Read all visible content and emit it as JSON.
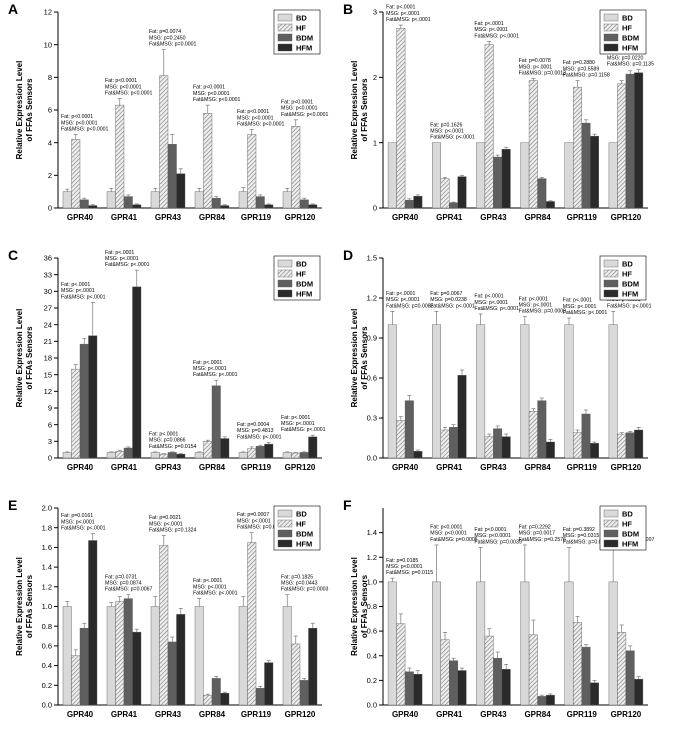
{
  "figure": {
    "patterns": {
      "BD": "#d9d9d9",
      "HF": "hatch",
      "BDM": "#5f5f5f",
      "HFM": "#2a2a2a"
    }
  },
  "chart_data": [
    {
      "panel": "A",
      "type": "bar",
      "categories": [
        "GPR40",
        "GPR41",
        "GPR43",
        "GPR84",
        "GPR119",
        "GPR120"
      ],
      "ylabel": [
        "Relative Expression Level",
        "of FFAs Sensors"
      ],
      "ylim": [
        0,
        12
      ],
      "yticks": [
        0,
        2,
        4,
        6,
        8,
        10,
        12
      ],
      "tick_decimals": 0,
      "legend": [
        "BD",
        "HF",
        "BDM",
        "HFM"
      ],
      "legend_position": "top-right",
      "series": [
        {
          "name": "BD",
          "values": [
            1.0,
            1.0,
            1.0,
            1.0,
            1.0,
            1.0
          ],
          "errors": [
            0.15,
            0.2,
            0.2,
            0.2,
            0.25,
            0.2
          ]
        },
        {
          "name": "HF",
          "values": [
            4.2,
            6.3,
            8.1,
            5.8,
            4.5,
            5.0
          ],
          "errors": [
            0.3,
            0.4,
            1.6,
            0.5,
            0.3,
            0.4
          ]
        },
        {
          "name": "BDM",
          "values": [
            0.5,
            0.7,
            3.9,
            0.6,
            0.7,
            0.5
          ],
          "errors": [
            0.1,
            0.1,
            0.6,
            0.1,
            0.1,
            0.1
          ]
        },
        {
          "name": "HFM",
          "values": [
            0.15,
            0.2,
            2.1,
            0.15,
            0.2,
            0.2
          ],
          "errors": [
            0.05,
            0.05,
            0.3,
            0.05,
            0.05,
            0.05
          ]
        }
      ],
      "annotations": [
        [
          "Fat: p<0.0001",
          "MSG: p<0.0001",
          "Fat&MSG: p<0.0001"
        ],
        [
          "Fat: p<0.0001",
          "MSG: p<0.0001",
          "Fat&MSG: p<0.0001"
        ],
        [
          "Fat: p=0.0074",
          "MSG: p=0.2450",
          "Fat&MSG: p=0.0001"
        ],
        [
          "Fat: p<0.0001",
          "MSG: p<0.0001",
          "Fat&MSG: p<0.0001"
        ],
        [
          "Fat: p<0.0001",
          "MSG: p<0.0001",
          "Fat&MSG: p<0.0001"
        ],
        [
          "Fat: p<0.0001",
          "MSG: p<0.0001",
          "Fat&MSG: p<0.0001"
        ]
      ]
    },
    {
      "panel": "B",
      "type": "bar",
      "categories": [
        "GPR40",
        "GPR41",
        "GPR43",
        "GPR84",
        "GPR119",
        "GPR120"
      ],
      "ylabel": [
        "Relative Expression Level",
        "of FFAs Sensors"
      ],
      "ylim": [
        0,
        3
      ],
      "yticks": [
        0,
        1,
        2,
        3
      ],
      "tick_decimals": 0,
      "legend": [
        "BD",
        "HF",
        "BDM",
        "HFM"
      ],
      "legend_position": "top-right",
      "series": [
        {
          "name": "BD",
          "values": [
            1.0,
            1.0,
            1.0,
            1.0,
            1.0,
            1.0
          ],
          "errors": [
            0.0,
            0.0,
            0.0,
            0.0,
            0.0,
            0.0
          ]
        },
        {
          "name": "HF",
          "values": [
            2.75,
            0.45,
            2.5,
            1.95,
            1.85,
            1.9
          ],
          "errors": [
            0.05,
            0.02,
            0.05,
            0.03,
            0.1,
            0.05
          ]
        },
        {
          "name": "BDM",
          "values": [
            0.12,
            0.08,
            0.78,
            0.45,
            1.3,
            2.05
          ],
          "errors": [
            0.02,
            0.01,
            0.03,
            0.02,
            0.05,
            0.05
          ]
        },
        {
          "name": "HFM",
          "values": [
            0.18,
            0.48,
            0.9,
            0.1,
            1.1,
            2.07
          ],
          "errors": [
            0.02,
            0.02,
            0.03,
            0.01,
            0.03,
            0.05
          ]
        }
      ],
      "annotations": [
        [
          "Fat: p<.0001",
          "MSG: p<.0001",
          "Fat&MSG: p<.0001"
        ],
        [
          "Fat: p=0.1626",
          "MSG: p<.0001",
          "Fat&MSG: p<.0001"
        ],
        [
          "Fat: p<.0001",
          "MSG: p<.0001",
          "Fat&MSG: p<.0001"
        ],
        [
          "Fat: p=0.0078",
          "MSG: p<.0001",
          "Fat&MSG: p=0.0013"
        ],
        [
          "Fat: p=0.2880",
          "MSG: p=0.5589",
          "Fat&MSG: p=0.1158"
        ],
        [
          "Fat: p=0.1241",
          "MSG: p=0.0220",
          "Fat&MSG: p=0.1135"
        ]
      ]
    },
    {
      "panel": "C",
      "type": "bar",
      "categories": [
        "GPR40",
        "GPR41",
        "GPR43",
        "GPR84",
        "GPR119",
        "GPR120"
      ],
      "ylabel": [
        "Relative Expression Level",
        "of FFAs Sensors"
      ],
      "ylim": [
        0,
        36
      ],
      "yticks": [
        0,
        3,
        6,
        9,
        12,
        15,
        18,
        21,
        24,
        27,
        30,
        33,
        36
      ],
      "tick_decimals": 0,
      "legend": [
        "BD",
        "HF",
        "BDM",
        "HFM"
      ],
      "legend_position": "top-right",
      "series": [
        {
          "name": "BD",
          "values": [
            1.0,
            1.0,
            1.0,
            1.0,
            1.0,
            1.0
          ],
          "errors": [
            0.1,
            0.1,
            0.1,
            0.1,
            0.1,
            0.1
          ]
        },
        {
          "name": "HF",
          "values": [
            16.0,
            1.2,
            0.7,
            3.0,
            1.7,
            0.9
          ],
          "errors": [
            0.8,
            0.2,
            0.1,
            0.2,
            0.3,
            0.1
          ]
        },
        {
          "name": "BDM",
          "values": [
            20.5,
            1.8,
            1.0,
            13.0,
            2.1,
            1.0
          ],
          "errors": [
            1.0,
            0.2,
            0.1,
            1.0,
            0.2,
            0.1
          ]
        },
        {
          "name": "HFM",
          "values": [
            22.0,
            30.8,
            0.7,
            3.5,
            2.5,
            3.8
          ],
          "errors": [
            6.0,
            3.0,
            0.1,
            0.3,
            0.3,
            0.3
          ]
        }
      ],
      "annotations": [
        [
          "Fat: p<.0001",
          "MSG: p<.0001",
          "Fat&MSG: p<.0001"
        ],
        [
          "Fat: p<.0001",
          "MSG: p<.0001",
          "Fat&MSG: p<.0001"
        ],
        [
          "Fat: p<.0001",
          "MSG: p=0.0866",
          "Fat&MSG: p=0.0154"
        ],
        [
          "Fat: p<.0001",
          "MSG: p<.0001",
          "Fat&MSG: p<.0001"
        ],
        [
          "Fat: p=0.0004",
          "MSG: p=0.4813",
          "Fat&MSG: p<.0001"
        ],
        [
          "Fat: p<.0001",
          "MSG: p<.0001",
          "Fat&MSG: p<.0001"
        ]
      ]
    },
    {
      "panel": "D",
      "type": "bar",
      "categories": [
        "GPR40",
        "GPR41",
        "GPR43",
        "GPR84",
        "GPR119",
        "GPR120"
      ],
      "ylabel": [
        "Relative Expression Level",
        "of FFAs Sensors"
      ],
      "ylim": [
        0,
        1.5
      ],
      "yticks": [
        0.0,
        0.3,
        0.6,
        0.9,
        1.2,
        1.5
      ],
      "tick_decimals": 1,
      "legend": [
        "BD",
        "HF",
        "BDM",
        "HFM"
      ],
      "legend_position": "top-right",
      "series": [
        {
          "name": "BD",
          "values": [
            1.0,
            1.0,
            1.0,
            1.0,
            1.0,
            1.0
          ],
          "errors": [
            0.1,
            0.1,
            0.08,
            0.06,
            0.05,
            0.1
          ]
        },
        {
          "name": "HF",
          "values": [
            0.28,
            0.21,
            0.16,
            0.35,
            0.19,
            0.18
          ],
          "errors": [
            0.03,
            0.02,
            0.02,
            0.02,
            0.02,
            0.01
          ]
        },
        {
          "name": "BDM",
          "values": [
            0.43,
            0.23,
            0.22,
            0.43,
            0.33,
            0.19
          ],
          "errors": [
            0.04,
            0.02,
            0.02,
            0.02,
            0.03,
            0.01
          ]
        },
        {
          "name": "HFM",
          "values": [
            0.05,
            0.62,
            0.16,
            0.12,
            0.11,
            0.21
          ],
          "errors": [
            0.01,
            0.04,
            0.02,
            0.02,
            0.01,
            0.02
          ]
        }
      ],
      "annotations": [
        [
          "Fat: p<.0001",
          "MSG: p<.0001",
          "Fat&MSG: p=0.0082"
        ],
        [
          "Fat: p=0.0067",
          "MSG: p=0.0238",
          "Fat&MSG: p<.0001"
        ],
        [
          "Fat: p<.0001",
          "MSG: p<.0001",
          "Fat&MSG: p<.0001"
        ],
        [
          "Fat: p<.0001",
          "MSG: p<.0001",
          "Fat&MSG: p=0.0009"
        ],
        [
          "Fat: p<.0001",
          "MSG: p<.0001",
          "Fat&MSG: p<.0001"
        ],
        [
          "Fat: p<.0001",
          "MSG: p<.0001",
          "Fat&MSG: p<.0001"
        ]
      ]
    },
    {
      "panel": "E",
      "type": "bar",
      "categories": [
        "GPR40",
        "GPR41",
        "GPR43",
        "GPR84",
        "GPR119",
        "GPR120"
      ],
      "ylabel": [
        "Relative Expression Level",
        "of FFAs Sensors"
      ],
      "ylim": [
        0,
        2.0
      ],
      "yticks": [
        0.0,
        0.2,
        0.4,
        0.6,
        0.8,
        1.0,
        1.2,
        1.4,
        1.6,
        1.8,
        2.0
      ],
      "tick_decimals": 1,
      "legend": [
        "BD",
        "HF",
        "BDM",
        "HFM"
      ],
      "legend_position": "top-right",
      "series": [
        {
          "name": "BD",
          "values": [
            1.0,
            1.0,
            1.0,
            1.0,
            1.0,
            1.0
          ],
          "errors": [
            0.05,
            0.04,
            0.1,
            0.08,
            0.1,
            0.12
          ]
        },
        {
          "name": "HF",
          "values": [
            0.5,
            1.05,
            1.62,
            0.1,
            1.65,
            0.62
          ],
          "errors": [
            0.06,
            0.05,
            0.1,
            0.01,
            0.1,
            0.08
          ]
        },
        {
          "name": "BDM",
          "values": [
            0.78,
            1.08,
            0.64,
            0.27,
            0.17,
            0.25
          ],
          "errors": [
            0.05,
            0.04,
            0.05,
            0.02,
            0.02,
            0.02
          ]
        },
        {
          "name": "HFM",
          "values": [
            1.67,
            0.74,
            0.92,
            0.12,
            0.43,
            0.78
          ],
          "errors": [
            0.07,
            0.03,
            0.06,
            0.01,
            0.02,
            0.05
          ]
        }
      ],
      "annotations": [
        [
          "Fat: p=0.0161",
          "MSG: p<.0001",
          "Fat&MSG: p<.0001"
        ],
        [
          "Fat: p=0.0731",
          "MSG: p=0.0874",
          "Fat&MSG: p=0.0067"
        ],
        [
          "Fat: p=0.0021",
          "MSG: p<.0001",
          "Fat&MSG: p=0.1324"
        ],
        [
          "Fat: p<.0001",
          "MSG: p<.0001",
          "Fat&MSG: p<.0001"
        ],
        [
          "Fat: p=0.0007",
          "MSG: p<.0001",
          "Fat&MSG: p=0.0748"
        ],
        [
          "Fat: p=0.1825",
          "MSG: p=0.0443",
          "Fat&MSG: p=0.0003"
        ]
      ]
    },
    {
      "panel": "F",
      "type": "bar",
      "categories": [
        "GPR40",
        "GPR41",
        "GPR43",
        "GPR84",
        "GPR119",
        "GPR120"
      ],
      "ylabel": [
        "Relative Expression Level",
        "of FFAs Sensors"
      ],
      "ylim": [
        0,
        1.6
      ],
      "yticks": [
        0.0,
        0.2,
        0.4,
        0.6,
        0.8,
        1.0,
        1.2,
        1.4
      ],
      "tick_decimals": 1,
      "legend": [
        "BD",
        "HF",
        "BDM",
        "HFM"
      ],
      "legend_position": "top-right",
      "series": [
        {
          "name": "BD",
          "values": [
            1.0,
            1.0,
            1.0,
            1.0,
            1.0,
            1.0
          ],
          "errors": [
            0.03,
            0.3,
            0.28,
            0.3,
            0.28,
            0.3
          ]
        },
        {
          "name": "HF",
          "values": [
            0.66,
            0.53,
            0.56,
            0.57,
            0.67,
            0.59
          ],
          "errors": [
            0.08,
            0.06,
            0.06,
            0.12,
            0.05,
            0.06
          ]
        },
        {
          "name": "BDM",
          "values": [
            0.27,
            0.36,
            0.38,
            0.07,
            0.47,
            0.44
          ],
          "errors": [
            0.03,
            0.02,
            0.05,
            0.01,
            0.02,
            0.04
          ]
        },
        {
          "name": "HFM",
          "values": [
            0.25,
            0.28,
            0.29,
            0.08,
            0.18,
            0.21
          ],
          "errors": [
            0.03,
            0.02,
            0.04,
            0.01,
            0.02,
            0.02
          ]
        }
      ],
      "annotations": [
        [
          "Fat: p=0.0185",
          "MSG: p<0.0001",
          "Fat&MSG: p=0.0115"
        ],
        [
          "Fat: p<0.0001",
          "MSG: p<0.0001",
          "Fat&MSG: p=0.0005"
        ],
        [
          "Fat: p<0.0001",
          "MSG: p<0.0001",
          "Fat&MSG: p=0.0039"
        ],
        [
          "Fat: p=0.2292",
          "MSG: p=0.0017",
          "Fat&MSG: p=0.2576"
        ],
        [
          "Fat: p=0.3892",
          "MSG: p=0.0315",
          "Fat&MSG: p=0.0001"
        ],
        [
          "Fat: p=0.3817",
          "MSG: p=0.3725",
          "Fat&MSG: p=0.0007"
        ]
      ]
    }
  ]
}
